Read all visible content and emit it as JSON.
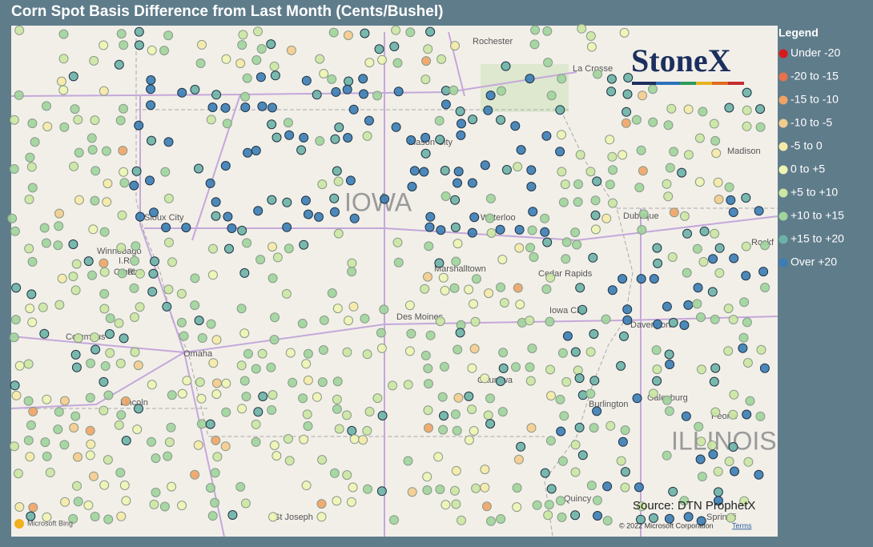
{
  "header": {
    "title": "Corn Spot Basis Difference from Last Month (Cents/Bushel)"
  },
  "legend": {
    "title": "Legend",
    "items": [
      {
        "label": "Under -20",
        "color": "#d7191c"
      },
      {
        "label": "-20 to -15",
        "color": "#e8704a"
      },
      {
        "label": "-15 to -10",
        "color": "#f0a365"
      },
      {
        "label": "-10 to -5",
        "color": "#f5cb8c"
      },
      {
        "label": "-5 to 0",
        "color": "#f6eaa6"
      },
      {
        "label": "0 to +5",
        "color": "#eef4b2"
      },
      {
        "label": "+5 to +10",
        "color": "#cbe7a2"
      },
      {
        "label": "+10 to +15",
        "color": "#9fd49b"
      },
      {
        "label": "+15 to +20",
        "color": "#6cb3a6"
      },
      {
        "label": "Over +20",
        "color": "#3a7db5"
      }
    ]
  },
  "logo": "StoneX",
  "map_labels": [
    "Rochester",
    "La Crosse",
    "Mason City",
    "Madison",
    "IOWA",
    "Sioux City",
    "Waterloo",
    "Dubuque",
    "Winnebago",
    "I.R.",
    "Omaha",
    "I.R.",
    "Marshalltown",
    "Cedar Rapids",
    "Iowa City",
    "Rockf",
    "Davenport",
    "Columbus",
    "Des Moines",
    "Omaha",
    "Ottumwa",
    "Lincoln",
    "Burlington",
    "Galesburg",
    "Peoria",
    "ILLINOIS",
    "St Joseph",
    "Quincy",
    "Springfi"
  ],
  "footer": {
    "source": "Source: DTN ProphetX",
    "bing": "Microsoft Bing",
    "copyright": "© 2022 Microsoft Corporation",
    "terms": "Terms"
  }
}
